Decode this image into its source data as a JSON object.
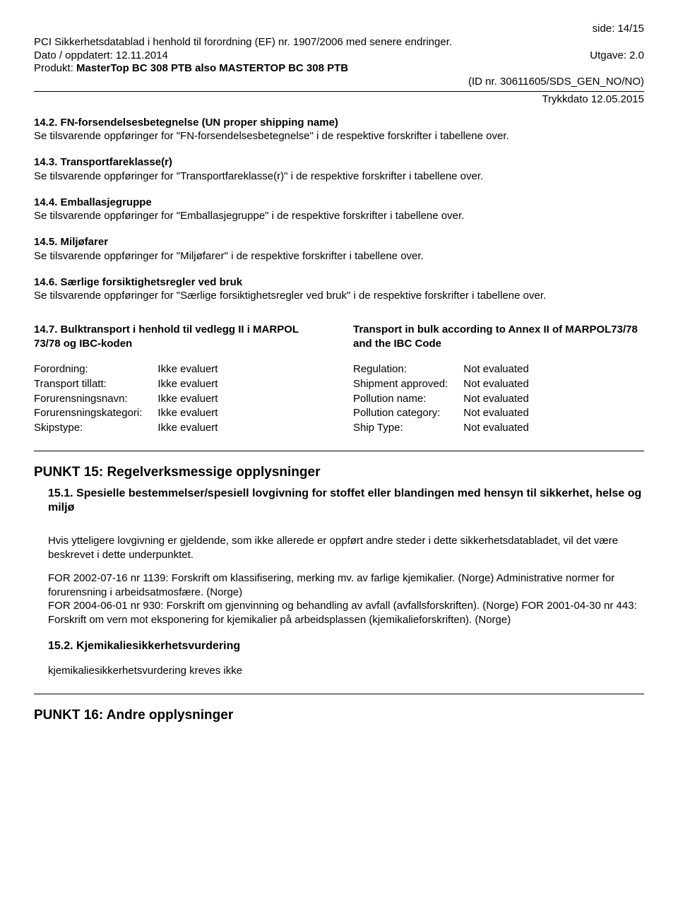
{
  "header": {
    "page_num": "side: 14/15",
    "line1": "PCI Sikkerhetsdatablad i henhold til forordning (EF) nr. 1907/2006 med senere endringer.",
    "date_label": "Dato / oppdatert: 12.11.2014",
    "edition_label": "Utgave: 2.0",
    "product_label": "Produkt: ",
    "product_name": "MasterTop BC 308 PTB also MASTERTOP BC 308 PTB",
    "id_line": "(ID nr. 30611605/SDS_GEN_NO/NO)",
    "print_date": "Trykkdato 12.05.2015"
  },
  "s14_2": {
    "title": "14.2. FN-forsendelsesbetegnelse (UN proper shipping name)",
    "body": "Se tilsvarende oppføringer for \"FN-forsendelsesbetegnelse\" i de respektive forskrifter i tabellene over."
  },
  "s14_3": {
    "title": "14.3. Transportfareklasse(r)",
    "body": "Se tilsvarende oppføringer for \"Transportfareklasse(r)\" i de respektive forskrifter i tabellene over."
  },
  "s14_4": {
    "title": "14.4. Emballasjegruppe",
    "body": "Se tilsvarende oppføringer for \"Emballasjegruppe\" i de respektive forskrifter i tabellene over."
  },
  "s14_5": {
    "title": "14.5. Miljøfarer",
    "body": "Se tilsvarende oppføringer for \"Miljøfarer\" i de respektive forskrifter i tabellene over."
  },
  "s14_6": {
    "title": "14.6. Særlige forsiktighetsregler ved bruk",
    "body": "Se tilsvarende oppføringer for \"Særlige forsiktighetsregler ved bruk\" i de respektive forskrifter i tabellene over."
  },
  "s14_7": {
    "left_title": "14.7. Bulktransport i henhold til vedlegg II i MARPOL 73/78 og IBC-koden",
    "right_title": "Transport in bulk according to Annex II of MARPOL73/78 and the IBC Code",
    "left_rows": [
      [
        "Forordning:",
        "Ikke evaluert"
      ],
      [
        "Transport tillatt:",
        "Ikke evaluert"
      ],
      [
        "Forurensningsnavn:",
        "Ikke evaluert"
      ],
      [
        "Forurensningskategori:",
        "Ikke evaluert"
      ],
      [
        "Skipstype:",
        "Ikke evaluert"
      ]
    ],
    "right_rows": [
      [
        "Regulation:",
        "Not evaluated"
      ],
      [
        "Shipment approved:",
        "Not evaluated"
      ],
      [
        "Pollution name:",
        "Not evaluated"
      ],
      [
        "Pollution category:",
        "Not evaluated"
      ],
      [
        "Ship Type:",
        "Not evaluated"
      ]
    ]
  },
  "punkt15": {
    "title": "PUNKT 15: Regelverksmessige opplysninger",
    "s15_1_title": "15.1. Spesielle bestemmelser/spesiell lovgivning for stoffet eller blandingen med hensyn til sikkerhet, helse og miljø",
    "para1": "Hvis ytteligere lovgivning er gjeldende, som ikke allerede er oppført andre steder i dette sikkerhetsdatabladet, vil det være beskrevet i dette underpunktet.",
    "para2": "FOR 2002-07-16 nr 1139: Forskrift om klassifisering, merking mv. av farlige kjemikalier. (Norge) Administrative normer for forurensning i arbeidsatmosfære. (Norge)",
    "para2b": "FOR 2004-06-01 nr 930: Forskrift om gjenvinning og behandling av avfall (avfallsforskriften). (Norge) FOR 2001-04-30 nr 443: Forskrift om vern mot eksponering for kjemikalier på arbeidsplassen (kjemikalieforskriften). (Norge)",
    "s15_2_title": "15.2. Kjemikaliesikkerhetsvurdering",
    "s15_2_body": "kjemikaliesikkerhetsvurdering kreves ikke"
  },
  "punkt16": {
    "title": "PUNKT 16: Andre opplysninger"
  }
}
